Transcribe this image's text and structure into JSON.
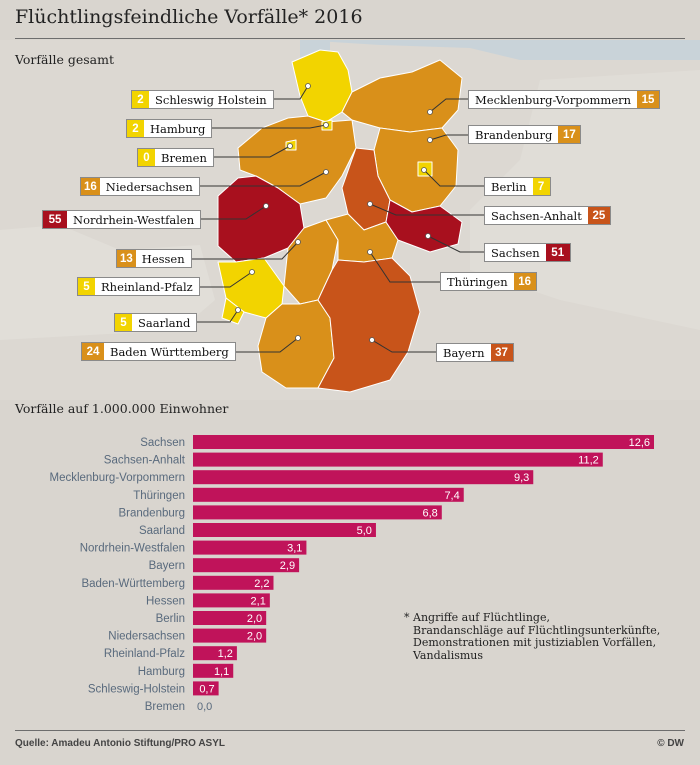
{
  "header": {
    "title": "Flüchtlingsfeindliche Vorfälle* 2016",
    "subtitle_total": "Vorfälle gesamt",
    "subtitle_rate": "Vorfälle auf 1.000.000 Einwohner"
  },
  "map": {
    "labels": [
      {
        "name": "Schleswig Holstein",
        "value": "2"
      },
      {
        "name": "Hamburg",
        "value": "2"
      },
      {
        "name": "Bremen",
        "value": "0"
      },
      {
        "name": "Niedersachsen",
        "value": "16"
      },
      {
        "name": "Nordrhein-Westfalen",
        "value": "55"
      },
      {
        "name": "Hessen",
        "value": "13"
      },
      {
        "name": "Rheinland-Pfalz",
        "value": "5"
      },
      {
        "name": "Saarland",
        "value": "5"
      },
      {
        "name": "Baden Württemberg",
        "value": "24"
      },
      {
        "name": "Mecklenburg-Vorpommern",
        "value": "15"
      },
      {
        "name": "Brandenburg",
        "value": "17"
      },
      {
        "name": "Berlin",
        "value": "7"
      },
      {
        "name": "Sachsen-Anhalt",
        "value": "25"
      },
      {
        "name": "Sachsen",
        "value": "51"
      },
      {
        "name": "Thüringen",
        "value": "16"
      },
      {
        "name": "Bayern",
        "value": "37"
      }
    ],
    "colors": {
      "low": "#f2d400",
      "mid": "#d9901a",
      "high": "#c8541a",
      "top": "#a8101e"
    }
  },
  "chart_data": {
    "type": "bar",
    "orientation": "horizontal",
    "title": "Vorfälle auf 1.000.000 Einwohner",
    "categories": [
      "Sachsen",
      "Sachsen-Anhalt",
      "Mecklenburg-Vorpommern",
      "Thüringen",
      "Brandenburg",
      "Saarland",
      "Nordrhein-Westfalen",
      "Bayern",
      "Baden-Württemberg",
      "Hessen",
      "Berlin",
      "Niedersachsen",
      "Rheinland-Pfalz",
      "Hamburg",
      "Schleswig-Holstein",
      "Bremen"
    ],
    "values": [
      12.6,
      11.2,
      9.3,
      7.4,
      6.8,
      5.0,
      3.1,
      2.9,
      2.2,
      2.1,
      2.0,
      2.0,
      1.2,
      1.1,
      0.7,
      0.0
    ],
    "value_labels": [
      "12,6",
      "11,2",
      "9,3",
      "7,4",
      "6,8",
      "5,0",
      "3,1",
      "2,9",
      "2,2",
      "2,1",
      "2,0",
      "2,0",
      "1,2",
      "1,1",
      "0,7",
      "0,0"
    ],
    "bar_color": "#c0135a",
    "xlim": [
      0,
      12.6
    ]
  },
  "footnote": {
    "star": "*",
    "text": "Angriffe auf Flüchtlinge,\nBrandanschläge auf Flüchtlingsunterkünfte,\nDemonstrationen mit justiziablen Vorfällen,\nVandalismus"
  },
  "footer": {
    "source": "Quelle: Amadeu Antonio Stiftung/PRO ASYL",
    "credit": "© DW"
  }
}
